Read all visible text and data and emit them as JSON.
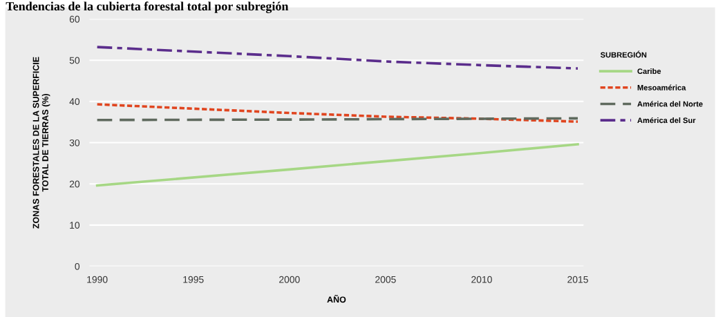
{
  "chart_data": {
    "type": "line",
    "title": "Tendencias de la cubierta forestal total por subregión",
    "xlabel": "AÑO",
    "ylabel": "ZONAS FORESTALES DE LA SUPERFICIE\nTOTAL DE TIERRAS (%)",
    "legend_title": "SUBREGIÓN",
    "x": [
      1990,
      2000,
      2005,
      2010,
      2015
    ],
    "series": [
      {
        "name": "Caribe",
        "color": "#a6d785",
        "line_style": "solid",
        "values": [
          19.6,
          23.5,
          25.5,
          27.5,
          29.6
        ]
      },
      {
        "name": "Mesoamérica",
        "color": "#e0451f",
        "line_style": "dotted",
        "values": [
          39.3,
          37.2,
          36.3,
          35.8,
          35.1
        ]
      },
      {
        "name": "América del Norte",
        "color": "#5f6a5e",
        "line_style": "dashed",
        "values": [
          35.5,
          35.6,
          35.7,
          35.8,
          35.9
        ]
      },
      {
        "name": "América del Sur",
        "color": "#5b2d8c",
        "line_style": "dashdot",
        "values": [
          53.2,
          51.0,
          49.7,
          48.8,
          48.0
        ]
      }
    ],
    "xlim": [
      1989.6,
      2015.3
    ],
    "xticks": [
      1990,
      1995,
      2000,
      2005,
      2010,
      2015
    ],
    "ylim": [
      0,
      60
    ],
    "yticks": [
      0,
      10,
      20,
      30,
      40,
      50,
      60
    ],
    "grid": "y",
    "legend": "right",
    "marker": "none"
  }
}
